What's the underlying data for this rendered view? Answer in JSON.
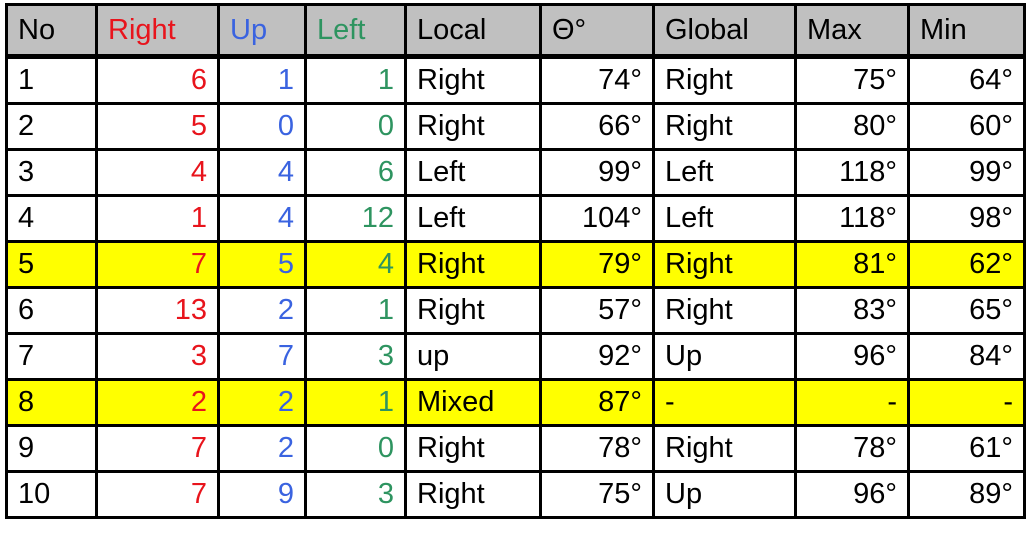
{
  "colors": {
    "right": "#e8141c",
    "up": "#3a63e0",
    "left": "#2e9460",
    "header_bg": "#c0c0c0",
    "highlight": "#ffff00"
  },
  "headers": [
    "No",
    "Right",
    "Up",
    "Left",
    "Local",
    "Θ°",
    "Global",
    "Max",
    "Min"
  ],
  "rows": [
    {
      "no": "1",
      "right": "6",
      "up": "1",
      "left": "1",
      "local": "Right",
      "theta": "74°",
      "global": "Right",
      "max": "75°",
      "min": "64°",
      "highlight": false
    },
    {
      "no": "2",
      "right": "5",
      "up": "0",
      "left": "0",
      "local": "Right",
      "theta": "66°",
      "global": "Right",
      "max": "80°",
      "min": "60°",
      "highlight": false
    },
    {
      "no": "3",
      "right": "4",
      "up": "4",
      "left": "6",
      "local": "Left",
      "theta": "99°",
      "global": "Left",
      "max": "118°",
      "min": "99°",
      "highlight": false
    },
    {
      "no": "4",
      "right": "1",
      "up": "4",
      "left": "12",
      "local": "Left",
      "theta": "104°",
      "global": "Left",
      "max": "118°",
      "min": "98°",
      "highlight": false
    },
    {
      "no": "5",
      "right": "7",
      "up": "5",
      "left": "4",
      "local": "Right",
      "theta": "79°",
      "global": "Right",
      "max": "81°",
      "min": "62°",
      "highlight": true
    },
    {
      "no": "6",
      "right": "13",
      "up": "2",
      "left": "1",
      "local": "Right",
      "theta": "57°",
      "global": "Right",
      "max": "83°",
      "min": "65°",
      "highlight": false
    },
    {
      "no": "7",
      "right": "3",
      "up": "7",
      "left": "3",
      "local": "up",
      "theta": "92°",
      "global": "Up",
      "max": "96°",
      "min": "84°",
      "highlight": false
    },
    {
      "no": "8",
      "right": "2",
      "up": "2",
      "left": "1",
      "local": "Mixed",
      "theta": "87°",
      "global": "-",
      "max": "-",
      "min": "-",
      "highlight": true
    },
    {
      "no": "9",
      "right": "7",
      "up": "2",
      "left": "0",
      "local": "Right",
      "theta": "78°",
      "global": "Right",
      "max": "78°",
      "min": "61°",
      "highlight": false
    },
    {
      "no": "10",
      "right": "7",
      "up": "9",
      "left": "3",
      "local": "Right",
      "theta": "75°",
      "global": "Up",
      "max": "96°",
      "min": "89°",
      "highlight": false
    }
  ]
}
